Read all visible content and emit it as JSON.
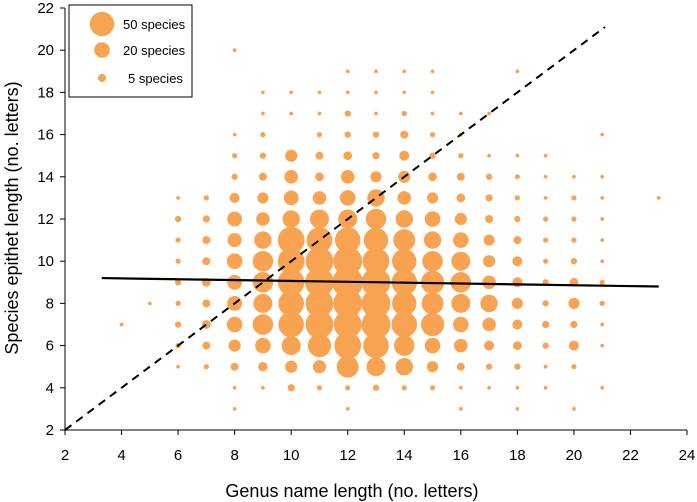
{
  "chart_data": {
    "type": "scatter",
    "subtype": "bubble",
    "xlabel": "Genus name length (no. letters)",
    "ylabel": "Species epithet length (no. letters)",
    "xlim": [
      2,
      24
    ],
    "ylim": [
      2,
      22
    ],
    "xticks": [
      "2",
      "4",
      "6",
      "8",
      "10",
      "12",
      "14",
      "16",
      "18",
      "20",
      "22",
      "24"
    ],
    "yticks": [
      "2",
      "4",
      "6",
      "8",
      "10",
      "12",
      "14",
      "16",
      "18",
      "20",
      "22"
    ],
    "bubble_color": "#f7a352",
    "legend": [
      {
        "label": "50 species",
        "count": 50
      },
      {
        "label": "20 species",
        "count": 20
      },
      {
        "label": "5 species",
        "count": 5
      }
    ],
    "lines": [
      {
        "name": "regression",
        "style": "solid",
        "points": [
          [
            3.3,
            9.2
          ],
          [
            23.0,
            8.8
          ]
        ]
      },
      {
        "name": "one-to-one",
        "style": "dashed",
        "points": [
          [
            2,
            2
          ],
          [
            21.1,
            21.1
          ]
        ]
      }
    ],
    "points": [
      {
        "x": 4,
        "y": 7,
        "n": 1
      },
      {
        "x": 5,
        "y": 8,
        "n": 1
      },
      {
        "x": 6,
        "y": 5,
        "n": 1
      },
      {
        "x": 6,
        "y": 6,
        "n": 2
      },
      {
        "x": 6,
        "y": 7,
        "n": 3
      },
      {
        "x": 6,
        "y": 8,
        "n": 2
      },
      {
        "x": 6,
        "y": 9,
        "n": 3
      },
      {
        "x": 6,
        "y": 10,
        "n": 2
      },
      {
        "x": 6,
        "y": 11,
        "n": 2
      },
      {
        "x": 6,
        "y": 12,
        "n": 3
      },
      {
        "x": 6,
        "y": 13,
        "n": 1
      },
      {
        "x": 7,
        "y": 5,
        "n": 2
      },
      {
        "x": 7,
        "y": 6,
        "n": 5
      },
      {
        "x": 7,
        "y": 7,
        "n": 6
      },
      {
        "x": 7,
        "y": 8,
        "n": 5
      },
      {
        "x": 7,
        "y": 9,
        "n": 6
      },
      {
        "x": 7,
        "y": 10,
        "n": 5
      },
      {
        "x": 7,
        "y": 11,
        "n": 5
      },
      {
        "x": 7,
        "y": 12,
        "n": 4
      },
      {
        "x": 7,
        "y": 13,
        "n": 2
      },
      {
        "x": 8,
        "y": 3,
        "n": 1
      },
      {
        "x": 8,
        "y": 4,
        "n": 1
      },
      {
        "x": 8,
        "y": 5,
        "n": 5
      },
      {
        "x": 8,
        "y": 6,
        "n": 12
      },
      {
        "x": 8,
        "y": 7,
        "n": 20
      },
      {
        "x": 8,
        "y": 8,
        "n": 18
      },
      {
        "x": 8,
        "y": 9,
        "n": 18
      },
      {
        "x": 8,
        "y": 10,
        "n": 20
      },
      {
        "x": 8,
        "y": 11,
        "n": 16
      },
      {
        "x": 8,
        "y": 12,
        "n": 18
      },
      {
        "x": 8,
        "y": 13,
        "n": 8
      },
      {
        "x": 8,
        "y": 14,
        "n": 3
      },
      {
        "x": 8,
        "y": 15,
        "n": 2
      },
      {
        "x": 8,
        "y": 16,
        "n": 1
      },
      {
        "x": 8,
        "y": 20,
        "n": 1
      },
      {
        "x": 9,
        "y": 4,
        "n": 1
      },
      {
        "x": 9,
        "y": 5,
        "n": 7
      },
      {
        "x": 9,
        "y": 6,
        "n": 20
      },
      {
        "x": 9,
        "y": 7,
        "n": 35
      },
      {
        "x": 9,
        "y": 8,
        "n": 30
      },
      {
        "x": 9,
        "y": 9,
        "n": 35
      },
      {
        "x": 9,
        "y": 10,
        "n": 35
      },
      {
        "x": 9,
        "y": 11,
        "n": 25
      },
      {
        "x": 9,
        "y": 12,
        "n": 15
      },
      {
        "x": 9,
        "y": 13,
        "n": 10
      },
      {
        "x": 9,
        "y": 14,
        "n": 5
      },
      {
        "x": 9,
        "y": 15,
        "n": 3
      },
      {
        "x": 9,
        "y": 16,
        "n": 2
      },
      {
        "x": 9,
        "y": 17,
        "n": 1
      },
      {
        "x": 9,
        "y": 18,
        "n": 1
      },
      {
        "x": 10,
        "y": 4,
        "n": 4
      },
      {
        "x": 10,
        "y": 5,
        "n": 12
      },
      {
        "x": 10,
        "y": 6,
        "n": 30
      },
      {
        "x": 10,
        "y": 7,
        "n": 55
      },
      {
        "x": 10,
        "y": 8,
        "n": 55
      },
      {
        "x": 10,
        "y": 9,
        "n": 60
      },
      {
        "x": 10,
        "y": 10,
        "n": 60
      },
      {
        "x": 10,
        "y": 11,
        "n": 60
      },
      {
        "x": 10,
        "y": 12,
        "n": 25
      },
      {
        "x": 10,
        "y": 13,
        "n": 18
      },
      {
        "x": 10,
        "y": 14,
        "n": 15
      },
      {
        "x": 10,
        "y": 15,
        "n": 12
      },
      {
        "x": 10,
        "y": 17,
        "n": 1
      },
      {
        "x": 10,
        "y": 18,
        "n": 1
      },
      {
        "x": 11,
        "y": 4,
        "n": 2
      },
      {
        "x": 11,
        "y": 5,
        "n": 14
      },
      {
        "x": 11,
        "y": 6,
        "n": 45
      },
      {
        "x": 11,
        "y": 7,
        "n": 65
      },
      {
        "x": 11,
        "y": 8,
        "n": 65
      },
      {
        "x": 11,
        "y": 9,
        "n": 70
      },
      {
        "x": 11,
        "y": 10,
        "n": 65
      },
      {
        "x": 11,
        "y": 11,
        "n": 55
      },
      {
        "x": 11,
        "y": 12,
        "n": 30
      },
      {
        "x": 11,
        "y": 13,
        "n": 15
      },
      {
        "x": 11,
        "y": 14,
        "n": 6
      },
      {
        "x": 11,
        "y": 15,
        "n": 5
      },
      {
        "x": 11,
        "y": 16,
        "n": 2
      },
      {
        "x": 11,
        "y": 17,
        "n": 1
      },
      {
        "x": 11,
        "y": 18,
        "n": 1
      },
      {
        "x": 12,
        "y": 3,
        "n": 1
      },
      {
        "x": 12,
        "y": 4,
        "n": 2
      },
      {
        "x": 12,
        "y": 5,
        "n": 40
      },
      {
        "x": 12,
        "y": 6,
        "n": 60
      },
      {
        "x": 12,
        "y": 7,
        "n": 65
      },
      {
        "x": 12,
        "y": 8,
        "n": 70
      },
      {
        "x": 12,
        "y": 9,
        "n": 80
      },
      {
        "x": 12,
        "y": 10,
        "n": 70
      },
      {
        "x": 12,
        "y": 11,
        "n": 55
      },
      {
        "x": 12,
        "y": 12,
        "n": 30
      },
      {
        "x": 12,
        "y": 13,
        "n": 20
      },
      {
        "x": 12,
        "y": 14,
        "n": 15
      },
      {
        "x": 12,
        "y": 15,
        "n": 6
      },
      {
        "x": 12,
        "y": 16,
        "n": 3
      },
      {
        "x": 12,
        "y": 17,
        "n": 3
      },
      {
        "x": 12,
        "y": 18,
        "n": 1
      },
      {
        "x": 12,
        "y": 19,
        "n": 1
      },
      {
        "x": 13,
        "y": 4,
        "n": 3
      },
      {
        "x": 13,
        "y": 5,
        "n": 30
      },
      {
        "x": 13,
        "y": 6,
        "n": 55
      },
      {
        "x": 13,
        "y": 7,
        "n": 70
      },
      {
        "x": 13,
        "y": 8,
        "n": 70
      },
      {
        "x": 13,
        "y": 9,
        "n": 70
      },
      {
        "x": 13,
        "y": 10,
        "n": 60
      },
      {
        "x": 13,
        "y": 11,
        "n": 50
      },
      {
        "x": 13,
        "y": 12,
        "n": 35
      },
      {
        "x": 13,
        "y": 13,
        "n": 25
      },
      {
        "x": 13,
        "y": 14,
        "n": 10
      },
      {
        "x": 13,
        "y": 15,
        "n": 4
      },
      {
        "x": 13,
        "y": 16,
        "n": 3
      },
      {
        "x": 13,
        "y": 17,
        "n": 1
      },
      {
        "x": 13,
        "y": 18,
        "n": 1
      },
      {
        "x": 13,
        "y": 19,
        "n": 1
      },
      {
        "x": 14,
        "y": 4,
        "n": 2
      },
      {
        "x": 14,
        "y": 5,
        "n": 25
      },
      {
        "x": 14,
        "y": 6,
        "n": 35
      },
      {
        "x": 14,
        "y": 7,
        "n": 55
      },
      {
        "x": 14,
        "y": 8,
        "n": 50
      },
      {
        "x": 14,
        "y": 9,
        "n": 55
      },
      {
        "x": 14,
        "y": 10,
        "n": 50
      },
      {
        "x": 14,
        "y": 11,
        "n": 40
      },
      {
        "x": 14,
        "y": 12,
        "n": 25
      },
      {
        "x": 14,
        "y": 13,
        "n": 15
      },
      {
        "x": 14,
        "y": 14,
        "n": 12
      },
      {
        "x": 14,
        "y": 15,
        "n": 8
      },
      {
        "x": 14,
        "y": 16,
        "n": 5
      },
      {
        "x": 14,
        "y": 17,
        "n": 2
      },
      {
        "x": 14,
        "y": 18,
        "n": 1
      },
      {
        "x": 14,
        "y": 19,
        "n": 1
      },
      {
        "x": 15,
        "y": 4,
        "n": 2
      },
      {
        "x": 15,
        "y": 5,
        "n": 10
      },
      {
        "x": 15,
        "y": 6,
        "n": 20
      },
      {
        "x": 15,
        "y": 7,
        "n": 45
      },
      {
        "x": 15,
        "y": 8,
        "n": 40
      },
      {
        "x": 15,
        "y": 9,
        "n": 45
      },
      {
        "x": 15,
        "y": 10,
        "n": 35
      },
      {
        "x": 15,
        "y": 11,
        "n": 25
      },
      {
        "x": 15,
        "y": 12,
        "n": 20
      },
      {
        "x": 15,
        "y": 13,
        "n": 10
      },
      {
        "x": 15,
        "y": 14,
        "n": 6
      },
      {
        "x": 15,
        "y": 15,
        "n": 3
      },
      {
        "x": 15,
        "y": 16,
        "n": 2
      },
      {
        "x": 15,
        "y": 17,
        "n": 1
      },
      {
        "x": 15,
        "y": 18,
        "n": 1
      },
      {
        "x": 15,
        "y": 19,
        "n": 1
      },
      {
        "x": 16,
        "y": 3,
        "n": 1
      },
      {
        "x": 16,
        "y": 4,
        "n": 1
      },
      {
        "x": 16,
        "y": 5,
        "n": 5
      },
      {
        "x": 16,
        "y": 6,
        "n": 15
      },
      {
        "x": 16,
        "y": 7,
        "n": 20
      },
      {
        "x": 16,
        "y": 8,
        "n": 30
      },
      {
        "x": 16,
        "y": 9,
        "n": 35
      },
      {
        "x": 16,
        "y": 10,
        "n": 30
      },
      {
        "x": 16,
        "y": 11,
        "n": 20
      },
      {
        "x": 16,
        "y": 12,
        "n": 12
      },
      {
        "x": 16,
        "y": 13,
        "n": 6
      },
      {
        "x": 16,
        "y": 14,
        "n": 5
      },
      {
        "x": 16,
        "y": 15,
        "n": 2
      },
      {
        "x": 16,
        "y": 16,
        "n": 1
      },
      {
        "x": 16,
        "y": 17,
        "n": 1
      },
      {
        "x": 17,
        "y": 4,
        "n": 1
      },
      {
        "x": 17,
        "y": 5,
        "n": 3
      },
      {
        "x": 17,
        "y": 6,
        "n": 8
      },
      {
        "x": 17,
        "y": 7,
        "n": 15
      },
      {
        "x": 17,
        "y": 8,
        "n": 25
      },
      {
        "x": 17,
        "y": 9,
        "n": 15
      },
      {
        "x": 17,
        "y": 10,
        "n": 12
      },
      {
        "x": 17,
        "y": 11,
        "n": 10
      },
      {
        "x": 17,
        "y": 12,
        "n": 5
      },
      {
        "x": 17,
        "y": 13,
        "n": 4
      },
      {
        "x": 17,
        "y": 14,
        "n": 3
      },
      {
        "x": 17,
        "y": 15,
        "n": 1
      },
      {
        "x": 17,
        "y": 17,
        "n": 1
      },
      {
        "x": 18,
        "y": 3,
        "n": 1
      },
      {
        "x": 18,
        "y": 4,
        "n": 1
      },
      {
        "x": 18,
        "y": 5,
        "n": 3
      },
      {
        "x": 18,
        "y": 6,
        "n": 6
      },
      {
        "x": 18,
        "y": 7,
        "n": 8
      },
      {
        "x": 18,
        "y": 8,
        "n": 10
      },
      {
        "x": 18,
        "y": 9,
        "n": 8
      },
      {
        "x": 18,
        "y": 10,
        "n": 8
      },
      {
        "x": 18,
        "y": 11,
        "n": 5
      },
      {
        "x": 18,
        "y": 12,
        "n": 3
      },
      {
        "x": 18,
        "y": 13,
        "n": 2
      },
      {
        "x": 18,
        "y": 14,
        "n": 2
      },
      {
        "x": 18,
        "y": 15,
        "n": 1
      },
      {
        "x": 18,
        "y": 19,
        "n": 1
      },
      {
        "x": 19,
        "y": 4,
        "n": 1
      },
      {
        "x": 19,
        "y": 5,
        "n": 1
      },
      {
        "x": 19,
        "y": 6,
        "n": 3
      },
      {
        "x": 19,
        "y": 7,
        "n": 4
      },
      {
        "x": 19,
        "y": 8,
        "n": 3
      },
      {
        "x": 19,
        "y": 9,
        "n": 3
      },
      {
        "x": 19,
        "y": 10,
        "n": 2
      },
      {
        "x": 19,
        "y": 11,
        "n": 2
      },
      {
        "x": 19,
        "y": 12,
        "n": 2
      },
      {
        "x": 19,
        "y": 13,
        "n": 1
      },
      {
        "x": 19,
        "y": 14,
        "n": 1
      },
      {
        "x": 19,
        "y": 15,
        "n": 1
      },
      {
        "x": 20,
        "y": 3,
        "n": 1
      },
      {
        "x": 20,
        "y": 5,
        "n": 2
      },
      {
        "x": 20,
        "y": 6,
        "n": 8
      },
      {
        "x": 20,
        "y": 7,
        "n": 4
      },
      {
        "x": 20,
        "y": 8,
        "n": 10
      },
      {
        "x": 20,
        "y": 9,
        "n": 6
      },
      {
        "x": 20,
        "y": 10,
        "n": 3
      },
      {
        "x": 20,
        "y": 11,
        "n": 2
      },
      {
        "x": 20,
        "y": 12,
        "n": 2
      },
      {
        "x": 20,
        "y": 13,
        "n": 2
      },
      {
        "x": 20,
        "y": 14,
        "n": 1
      },
      {
        "x": 21,
        "y": 4,
        "n": 1
      },
      {
        "x": 21,
        "y": 6,
        "n": 1
      },
      {
        "x": 21,
        "y": 7,
        "n": 1
      },
      {
        "x": 21,
        "y": 8,
        "n": 2
      },
      {
        "x": 21,
        "y": 9,
        "n": 2
      },
      {
        "x": 21,
        "y": 10,
        "n": 1
      },
      {
        "x": 21,
        "y": 11,
        "n": 1
      },
      {
        "x": 21,
        "y": 12,
        "n": 1
      },
      {
        "x": 21,
        "y": 13,
        "n": 1
      },
      {
        "x": 21,
        "y": 14,
        "n": 1
      },
      {
        "x": 21,
        "y": 16,
        "n": 1
      },
      {
        "x": 23,
        "y": 13,
        "n": 1
      }
    ]
  }
}
